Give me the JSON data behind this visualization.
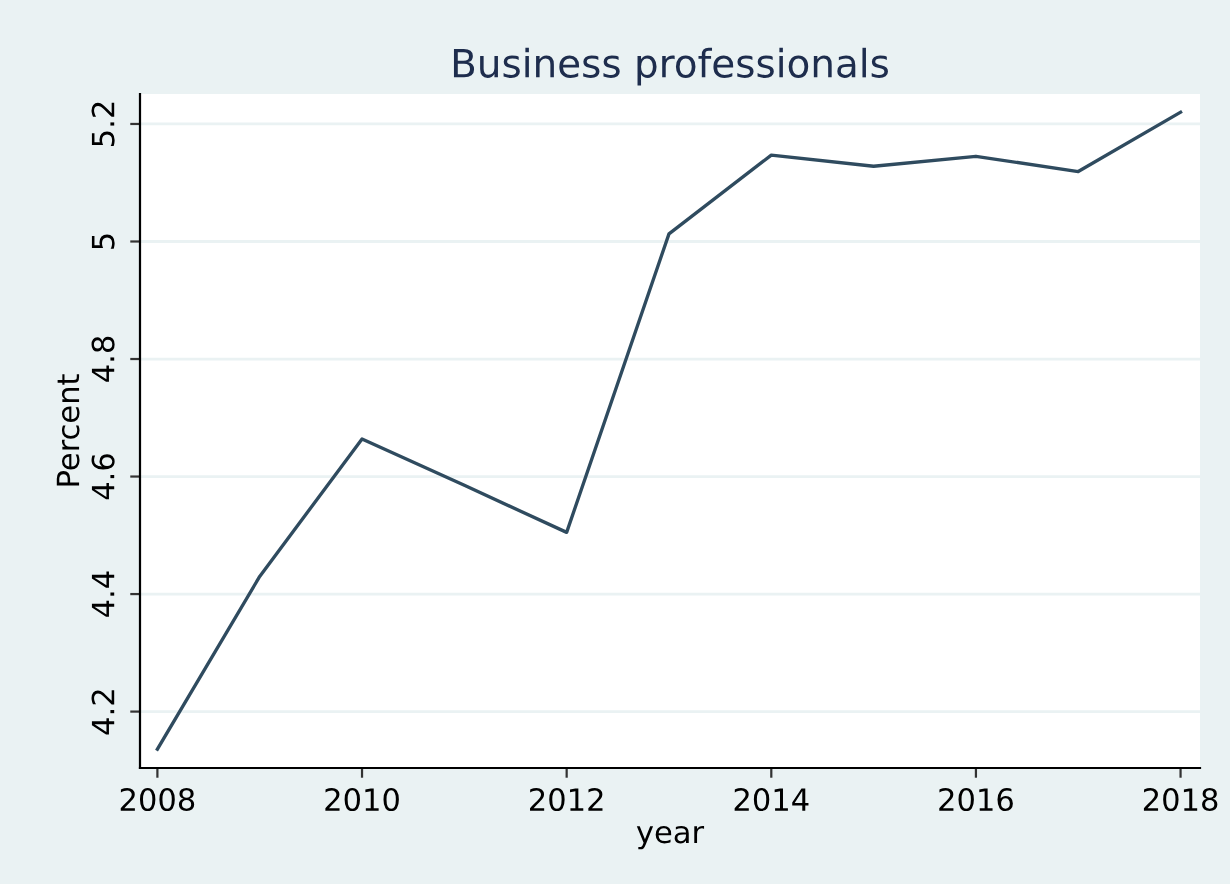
{
  "chart_data": {
    "type": "line",
    "title": "Business professionals",
    "xlabel": "year",
    "ylabel": "Percent",
    "x": [
      2008,
      2009,
      2010,
      2011,
      2012,
      2013,
      2014,
      2015,
      2016,
      2017,
      2018
    ],
    "series": [
      {
        "color": "#2f4b5f",
        "values": [
          4.136,
          4.43,
          4.664,
          4.585,
          4.505,
          5.013,
          5.147,
          5.128,
          5.145,
          5.119,
          5.22
        ]
      }
    ],
    "xlim": [
      2007.83,
      2018.19
    ],
    "xticks": [
      2008,
      2010,
      2012,
      2014,
      2016,
      2018
    ],
    "ylim": [
      4.104,
      5.251
    ],
    "yticks": [
      4.2,
      4.4,
      4.6,
      4.8,
      5,
      5.2
    ],
    "grid": "y",
    "marker": "none",
    "line_style": "solid",
    "legend": false
  }
}
